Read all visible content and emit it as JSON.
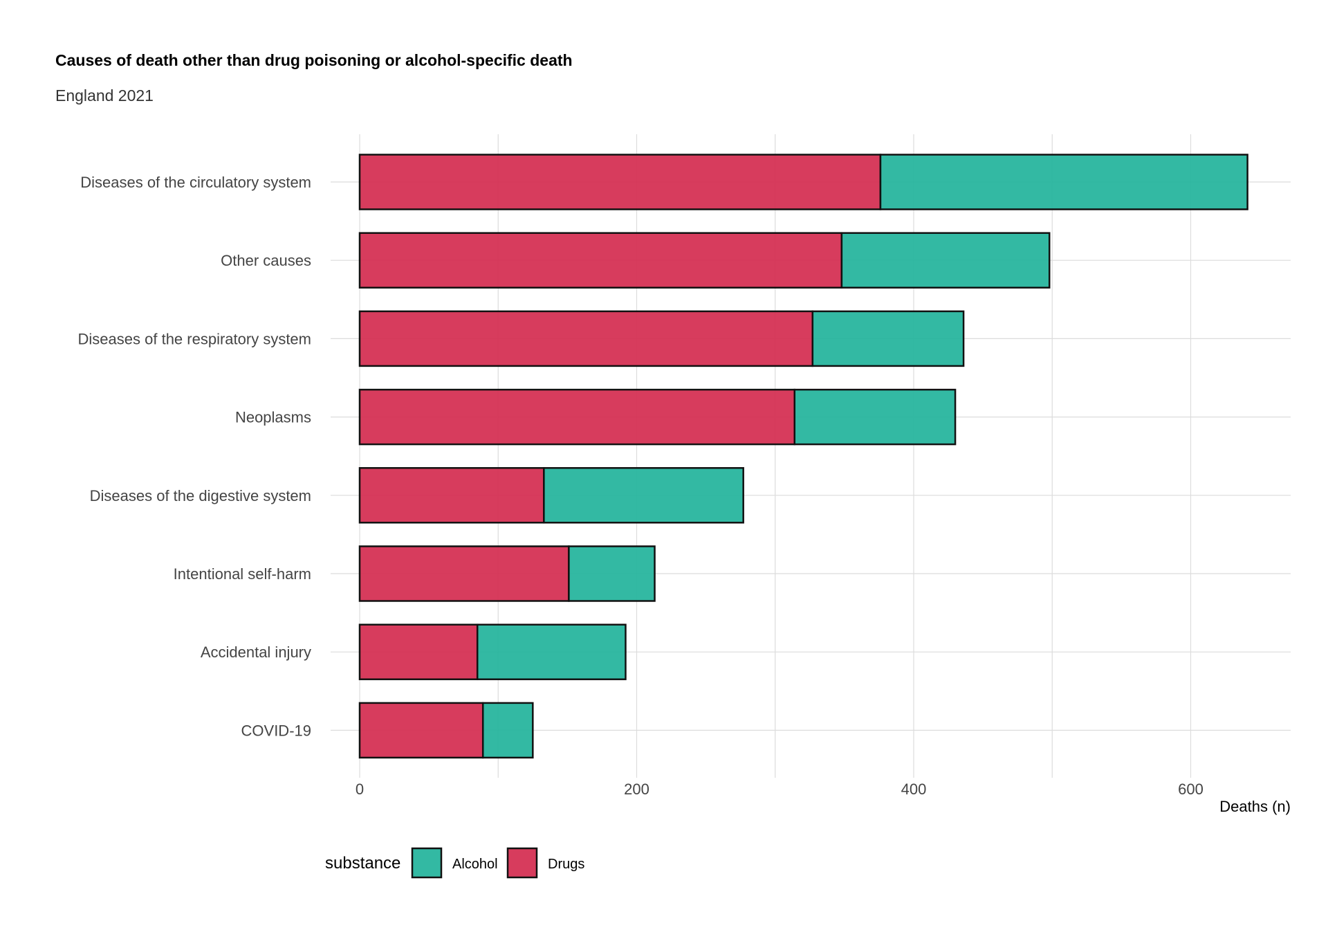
{
  "chart_data": {
    "type": "bar",
    "orientation": "horizontal",
    "stacked": true,
    "title": "Causes of death other than drug poisoning or alcohol-specific death",
    "subtitle": "England 2021",
    "xlabel": "Deaths (n)",
    "ylabel": "",
    "xlim": [
      0,
      660
    ],
    "xticks": [
      0,
      200,
      400,
      600
    ],
    "grid": true,
    "legend_position": "bottom-left",
    "legend_title": "substance",
    "categories": [
      "Diseases of the circulatory system",
      "Other causes",
      "Diseases of the respiratory system",
      "Neoplasms",
      "Diseases of the digestive system",
      "Intentional self-harm",
      "Accidental injury",
      "COVID-19"
    ],
    "series": [
      {
        "name": "Drugs",
        "color": "#d42b4f",
        "values": [
          376,
          348,
          327,
          314,
          133,
          151,
          85,
          89
        ]
      },
      {
        "name": "Alcohol",
        "color": "#22b39b",
        "values": [
          265,
          150,
          109,
          116,
          144,
          62,
          107,
          36
        ]
      }
    ],
    "legend_order": [
      "Alcohol",
      "Drugs"
    ]
  }
}
